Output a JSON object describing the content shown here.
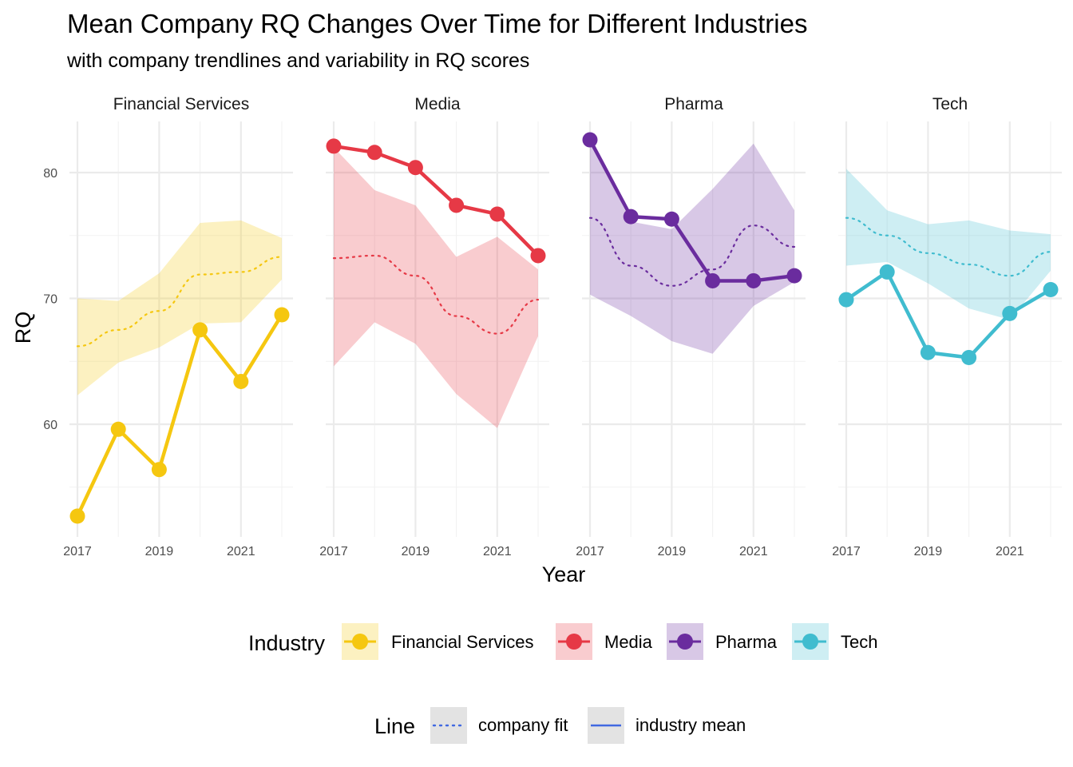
{
  "chart_data": {
    "type": "line",
    "title": "Mean Company RQ Changes Over Time for Different Industries",
    "subtitle": "with company trendlines and variability in RQ scores",
    "xlabel": "Year",
    "ylabel": "RQ",
    "x_ticks": [
      "2017",
      "2019",
      "2021"
    ],
    "y_ticks": [
      "60",
      "70",
      "80"
    ],
    "xlim": [
      2017,
      2022
    ],
    "ylim": [
      51.5,
      84
    ],
    "grid": true,
    "facets": [
      "Financial Services",
      "Media",
      "Pharma",
      "Tech"
    ],
    "x": [
      2017,
      2018,
      2019,
      2020,
      2021,
      2022
    ],
    "series": [
      {
        "name": "Financial Services",
        "color": "#F5C710",
        "industry_mean": [
          52.7,
          59.6,
          56.4,
          67.5,
          63.4,
          68.7
        ],
        "company_fit": [
          66.2,
          67.5,
          69.0,
          71.9,
          72.1,
          73.3
        ],
        "band_upper": [
          70.0,
          69.8,
          72.0,
          76.0,
          76.2,
          74.8
        ],
        "band_lower": [
          62.3,
          64.9,
          66.1,
          68.0,
          68.1,
          71.5
        ]
      },
      {
        "name": "Media",
        "color": "#E63946",
        "industry_mean": [
          82.1,
          81.6,
          80.4,
          77.4,
          76.7,
          73.4
        ],
        "company_fit": [
          73.2,
          73.4,
          71.8,
          68.6,
          67.2,
          69.9
        ],
        "band_upper": [
          82.0,
          78.6,
          77.4,
          73.3,
          74.9,
          72.3
        ],
        "band_lower": [
          64.6,
          68.1,
          66.4,
          62.4,
          59.7,
          67.0
        ]
      },
      {
        "name": "Pharma",
        "color": "#6A2C9E",
        "industry_mean": [
          82.6,
          76.5,
          76.3,
          71.4,
          71.4,
          71.8
        ],
        "company_fit": [
          76.4,
          72.6,
          71.0,
          72.3,
          75.8,
          74.1
        ],
        "band_upper": [
          82.6,
          76.1,
          75.5,
          78.7,
          82.3,
          77.0
        ],
        "band_lower": [
          70.3,
          68.6,
          66.6,
          65.6,
          69.4,
          71.3
        ]
      },
      {
        "name": "Tech",
        "color": "#40BCCF",
        "industry_mean": [
          69.9,
          72.1,
          65.7,
          65.3,
          68.8,
          70.7
        ],
        "company_fit": [
          76.4,
          75.0,
          73.6,
          72.7,
          71.8,
          73.7
        ],
        "band_upper": [
          80.3,
          77.0,
          75.9,
          76.2,
          75.4,
          75.1
        ],
        "band_lower": [
          72.6,
          72.9,
          71.2,
          69.2,
          68.3,
          72.2
        ]
      }
    ],
    "legend": {
      "placement": "bottom",
      "industry": {
        "title": "Industry",
        "items": [
          "Financial Services",
          "Media",
          "Pharma",
          "Tech"
        ]
      },
      "line": {
        "title": "Line",
        "items": [
          "company fit",
          "industry mean"
        ],
        "color": "#4169E1"
      }
    }
  }
}
